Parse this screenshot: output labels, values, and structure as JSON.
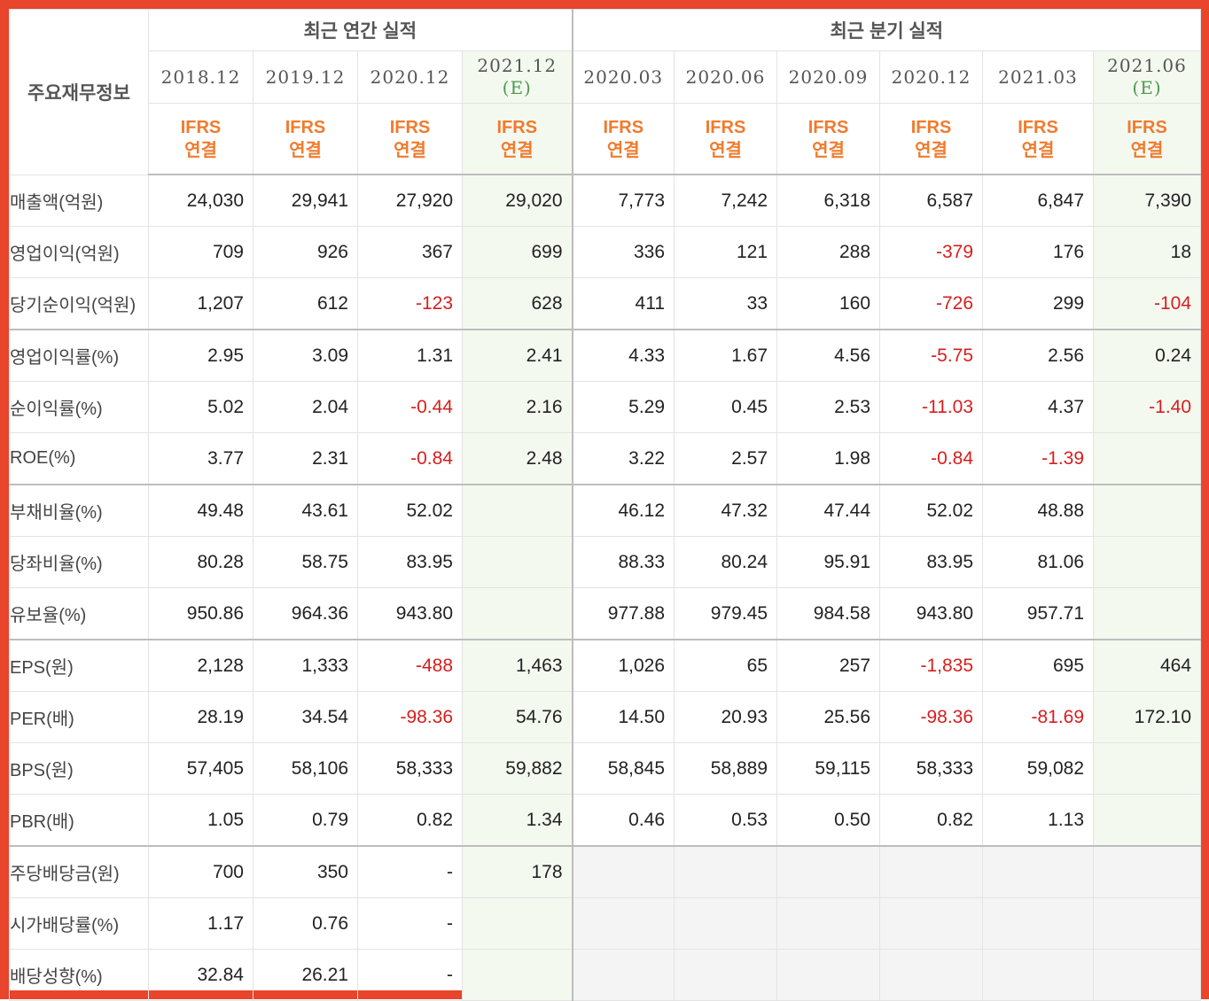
{
  "header": {
    "corner": "주요재무정보",
    "annual": "최근 연간 실적",
    "quarterly": "최근 분기 실적",
    "ifrs_line1": "IFRS",
    "ifrs_line2": "연결",
    "estimate_mark": "(E)"
  },
  "periods": [
    {
      "date": "2018.12",
      "est": false,
      "section": "annual"
    },
    {
      "date": "2019.12",
      "est": false,
      "section": "annual"
    },
    {
      "date": "2020.12",
      "est": false,
      "section": "annual"
    },
    {
      "date": "2021.12",
      "est": true,
      "section": "annual"
    },
    {
      "date": "2020.03",
      "est": false,
      "section": "quarterly"
    },
    {
      "date": "2020.06",
      "est": false,
      "section": "quarterly"
    },
    {
      "date": "2020.09",
      "est": false,
      "section": "quarterly"
    },
    {
      "date": "2020.12",
      "est": false,
      "section": "quarterly"
    },
    {
      "date": "2021.03",
      "est": false,
      "section": "quarterly"
    },
    {
      "date": "2021.06",
      "est": true,
      "section": "quarterly"
    }
  ],
  "rows": [
    {
      "label": "매출액(억원)",
      "group_start": false,
      "values": [
        "24,030",
        "29,941",
        "27,920",
        "29,020",
        "7,773",
        "7,242",
        "6,318",
        "6,587",
        "6,847",
        "7,390"
      ]
    },
    {
      "label": "영업이익(억원)",
      "group_start": false,
      "values": [
        "709",
        "926",
        "367",
        "699",
        "336",
        "121",
        "288",
        "-379",
        "176",
        "18"
      ]
    },
    {
      "label": "당기순이익(억원)",
      "group_start": false,
      "values": [
        "1,207",
        "612",
        "-123",
        "628",
        "411",
        "33",
        "160",
        "-726",
        "299",
        "-104"
      ]
    },
    {
      "label": "영업이익률(%)",
      "group_start": true,
      "values": [
        "2.95",
        "3.09",
        "1.31",
        "2.41",
        "4.33",
        "1.67",
        "4.56",
        "-5.75",
        "2.56",
        "0.24"
      ]
    },
    {
      "label": "순이익률(%)",
      "group_start": false,
      "values": [
        "5.02",
        "2.04",
        "-0.44",
        "2.16",
        "5.29",
        "0.45",
        "2.53",
        "-11.03",
        "4.37",
        "-1.40"
      ]
    },
    {
      "label": "ROE(%)",
      "group_start": false,
      "values": [
        "3.77",
        "2.31",
        "-0.84",
        "2.48",
        "3.22",
        "2.57",
        "1.98",
        "-0.84",
        "-1.39",
        ""
      ]
    },
    {
      "label": "부채비율(%)",
      "group_start": true,
      "values": [
        "49.48",
        "43.61",
        "52.02",
        "",
        "46.12",
        "47.32",
        "47.44",
        "52.02",
        "48.88",
        ""
      ]
    },
    {
      "label": "당좌비율(%)",
      "group_start": false,
      "values": [
        "80.28",
        "58.75",
        "83.95",
        "",
        "88.33",
        "80.24",
        "95.91",
        "83.95",
        "81.06",
        ""
      ]
    },
    {
      "label": "유보율(%)",
      "group_start": false,
      "values": [
        "950.86",
        "964.36",
        "943.80",
        "",
        "977.88",
        "979.45",
        "984.58",
        "943.80",
        "957.71",
        ""
      ]
    },
    {
      "label": "EPS(원)",
      "group_start": true,
      "values": [
        "2,128",
        "1,333",
        "-488",
        "1,463",
        "1,026",
        "65",
        "257",
        "-1,835",
        "695",
        "464"
      ]
    },
    {
      "label": "PER(배)",
      "group_start": false,
      "values": [
        "28.19",
        "34.54",
        "-98.36",
        "54.76",
        "14.50",
        "20.93",
        "25.56",
        "-98.36",
        "-81.69",
        "172.10"
      ]
    },
    {
      "label": "BPS(원)",
      "group_start": false,
      "values": [
        "57,405",
        "58,106",
        "58,333",
        "59,882",
        "58,845",
        "58,889",
        "59,115",
        "58,333",
        "59,082",
        ""
      ]
    },
    {
      "label": "PBR(배)",
      "group_start": false,
      "values": [
        "1.05",
        "0.79",
        "0.82",
        "1.34",
        "0.46",
        "0.53",
        "0.50",
        "0.82",
        "1.13",
        ""
      ]
    },
    {
      "label": "주당배당금(원)",
      "group_start": true,
      "quarter_na": true,
      "values": [
        "700",
        "350",
        "-",
        "178",
        "",
        "",
        "",
        "",
        "",
        ""
      ]
    },
    {
      "label": "시가배당률(%)",
      "group_start": false,
      "quarter_na": true,
      "values": [
        "1.17",
        "0.76",
        "-",
        "",
        "",
        "",
        "",
        "",
        "",
        ""
      ]
    },
    {
      "label": "배당성향(%)",
      "group_start": false,
      "quarter_na": true,
      "values": [
        "32.84",
        "26.21",
        "-",
        "",
        "",
        "",
        "",
        "",
        "",
        ""
      ]
    }
  ],
  "colors": {
    "negative": "#d71e1e",
    "ifrs": "#f07b2e",
    "estimate_bg": "#f4f9f0",
    "frame": "#e8452c"
  }
}
